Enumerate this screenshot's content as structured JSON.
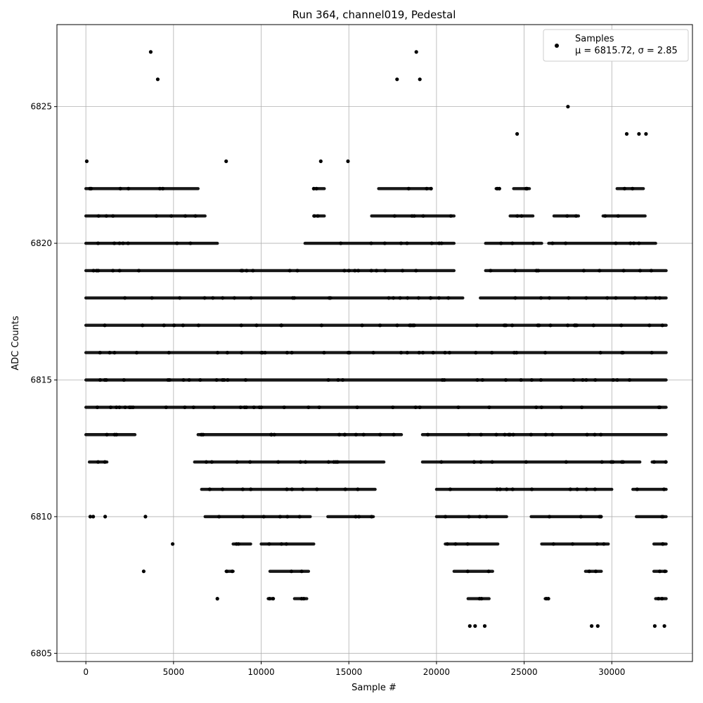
{
  "chart_data": {
    "type": "scatter",
    "title": "Run 364, channel019, Pedestal",
    "xlabel": "Sample #",
    "ylabel": "ADC Counts",
    "xlim": [
      -1650,
      34600
    ],
    "ylim": [
      6804.7,
      6828.0
    ],
    "xticks": [
      0,
      5000,
      10000,
      15000,
      20000,
      25000,
      30000
    ],
    "yticks": [
      6805,
      6810,
      6815,
      6820,
      6825
    ],
    "grid": true,
    "legend": {
      "position": "top-right",
      "series_label": "Samples",
      "stats_label": "μ = 6815.72, σ = 2.85"
    },
    "series": [
      {
        "name": "Samples",
        "color": "#000000",
        "n_samples": 33200,
        "mean": 6815.72,
        "sigma": 2.85,
        "outliers": [
          {
            "x": 3700,
            "y": 6827
          },
          {
            "x": 18850,
            "y": 6827
          },
          {
            "x": 4100,
            "y": 6826
          },
          {
            "x": 17750,
            "y": 6826
          },
          {
            "x": 19050,
            "y": 6826
          },
          {
            "x": 27500,
            "y": 6825
          },
          {
            "x": 30850,
            "y": 6824
          },
          {
            "x": 31550,
            "y": 6824
          },
          {
            "x": 31950,
            "y": 6824
          },
          {
            "x": 24600,
            "y": 6824
          },
          {
            "x": 3300,
            "y": 6808
          },
          {
            "x": 7500,
            "y": 6807
          },
          {
            "x": 4950,
            "y": 6809
          },
          {
            "x": 1100,
            "y": 6810
          },
          {
            "x": 3400,
            "y": 6810
          },
          {
            "x": 250,
            "y": 6810
          },
          {
            "x": 420,
            "y": 6810
          },
          {
            "x": 21900,
            "y": 6806
          },
          {
            "x": 22200,
            "y": 6806
          },
          {
            "x": 22750,
            "y": 6806
          },
          {
            "x": 28850,
            "y": 6806
          },
          {
            "x": 29200,
            "y": 6806
          },
          {
            "x": 32450,
            "y": 6806
          },
          {
            "x": 33000,
            "y": 6806
          },
          {
            "x": 13400,
            "y": 6823
          },
          {
            "x": 14950,
            "y": 6823
          },
          {
            "x": 8000,
            "y": 6823
          },
          {
            "x": 50,
            "y": 6823
          }
        ],
        "density_bands": [
          {
            "y": 6822,
            "ranges": [
              [
                0,
                6400
              ],
              [
                13000,
                13600
              ],
              [
                16700,
                19700
              ],
              [
                23400,
                23600
              ],
              [
                24400,
                25300
              ],
              [
                30300,
                31800
              ]
            ]
          },
          {
            "y": 6821,
            "ranges": [
              [
                0,
                6800
              ],
              [
                13000,
                13600
              ],
              [
                16300,
                21000
              ],
              [
                24200,
                25500
              ],
              [
                26700,
                28100
              ],
              [
                29500,
                31900
              ]
            ]
          },
          {
            "y": 6820,
            "ranges": [
              [
                0,
                7500
              ],
              [
                12500,
                21000
              ],
              [
                22800,
                26000
              ],
              [
                26400,
                32500
              ]
            ]
          },
          {
            "y": 6819,
            "ranges": [
              [
                0,
                21000
              ],
              [
                22800,
                33100
              ]
            ]
          },
          {
            "y": 6818,
            "ranges": [
              [
                0,
                21500
              ],
              [
                22500,
                33100
              ]
            ]
          },
          {
            "y": 6817,
            "ranges": [
              [
                0,
                33100
              ]
            ]
          },
          {
            "y": 6816,
            "ranges": [
              [
                0,
                33100
              ]
            ]
          },
          {
            "y": 6815,
            "ranges": [
              [
                0,
                33100
              ]
            ]
          },
          {
            "y": 6814,
            "ranges": [
              [
                0,
                33100
              ]
            ]
          },
          {
            "y": 6813,
            "ranges": [
              [
                0,
                2800
              ],
              [
                6400,
                18000
              ],
              [
                19200,
                33100
              ]
            ]
          },
          {
            "y": 6812,
            "ranges": [
              [
                200,
                1200
              ],
              [
                6200,
                17000
              ],
              [
                19200,
                31600
              ],
              [
                32300,
                33100
              ]
            ]
          },
          {
            "y": 6811,
            "ranges": [
              [
                6600,
                16500
              ],
              [
                20000,
                30000
              ],
              [
                31200,
                33100
              ]
            ]
          },
          {
            "y": 6810,
            "ranges": [
              [
                6800,
                12800
              ],
              [
                13800,
                16400
              ],
              [
                20000,
                24000
              ],
              [
                25400,
                29400
              ],
              [
                31400,
                33100
              ]
            ]
          },
          {
            "y": 6809,
            "ranges": [
              [
                8400,
                9400
              ],
              [
                10000,
                13000
              ],
              [
                20500,
                23500
              ],
              [
                26000,
                29800
              ],
              [
                32400,
                33100
              ]
            ]
          },
          {
            "y": 6808,
            "ranges": [
              [
                8000,
                8400
              ],
              [
                10500,
                12700
              ],
              [
                21000,
                23200
              ],
              [
                28500,
                29400
              ],
              [
                32400,
                33100
              ]
            ]
          },
          {
            "y": 6807,
            "ranges": [
              [
                10400,
                10700
              ],
              [
                11900,
                12600
              ],
              [
                21800,
                23000
              ],
              [
                26200,
                26400
              ],
              [
                32500,
                33100
              ]
            ]
          }
        ]
      }
    ]
  }
}
